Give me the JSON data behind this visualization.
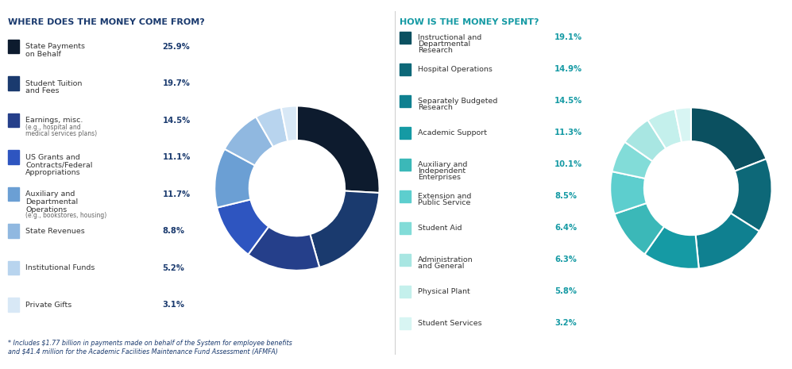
{
  "left_title": "WHERE DOES THE MONEY COME FROM?",
  "right_title": "HOW IS THE MONEY SPENT?",
  "footnote": "* Includes $1.77 billion in payments made on behalf of the System for employee benefits\nand $41.4 million for the Academic Facilities Maintenance Fund Assessment (AFMFA)",
  "left_entries": [
    {
      "label": "State Payments\non Behalf",
      "pct": "25.9%",
      "color": "#0d1b2e"
    },
    {
      "label": "Student Tuition\nand Fees",
      "pct": "19.7%",
      "color": "#1a3a6e"
    },
    {
      "label": "Earnings, misc.",
      "pct": "14.5%",
      "color": "#253f8a",
      "sub": "(e.g., hospital and\nmedical services plans)"
    },
    {
      "label": "US Grants and\nContracts/Federal\nAppropriations",
      "pct": "11.1%",
      "color": "#2e55c0"
    },
    {
      "label": "Auxiliary and\nDepartmental\nOperations",
      "pct": "11.7%",
      "color": "#6b9fd4",
      "sub": "(e.g., bookstores, housing)"
    },
    {
      "label": "State Revenues",
      "pct": "8.8%",
      "color": "#90b8e0"
    },
    {
      "label": "Institutional Funds",
      "pct": "5.2%",
      "color": "#b8d4ee"
    },
    {
      "label": "Private Gifts",
      "pct": "3.1%",
      "color": "#d8e8f6"
    }
  ],
  "left_values": [
    25.9,
    19.7,
    14.5,
    11.1,
    11.7,
    8.8,
    5.2,
    3.1
  ],
  "left_colors": [
    "#0d1b2e",
    "#1a3a6e",
    "#253f8a",
    "#2e55c0",
    "#6b9fd4",
    "#90b8e0",
    "#b8d4ee",
    "#d8e8f6"
  ],
  "right_entries": [
    {
      "label": "Instructional and\nDepartmental\nResearch",
      "pct": "19.1%",
      "color": "#0b5060"
    },
    {
      "label": "Hospital Operations",
      "pct": "14.9%",
      "color": "#0d6878"
    },
    {
      "label": "Separately Budgeted\nResearch",
      "pct": "14.5%",
      "color": "#0f8090"
    },
    {
      "label": "Academic Support",
      "pct": "11.3%",
      "color": "#159aa4"
    },
    {
      "label": "Auxiliary and\nIndependent\nEnterprises",
      "pct": "10.1%",
      "color": "#3bb8b8"
    },
    {
      "label": "Extension and\nPublic Service",
      "pct": "8.5%",
      "color": "#5dcece"
    },
    {
      "label": "Student Aid",
      "pct": "6.4%",
      "color": "#82dcd8"
    },
    {
      "label": "Administration\nand General",
      "pct": "6.3%",
      "color": "#a8e6e2"
    },
    {
      "label": "Physical Plant",
      "pct": "5.8%",
      "color": "#c4f0ec"
    },
    {
      "label": "Student Services",
      "pct": "3.2%",
      "color": "#d8f5f3"
    }
  ],
  "right_values": [
    19.1,
    14.9,
    14.5,
    11.3,
    10.1,
    8.5,
    6.4,
    6.3,
    5.8,
    3.2
  ],
  "right_colors": [
    "#0b5060",
    "#0d6878",
    "#0f8090",
    "#159aa4",
    "#3bb8b8",
    "#5dcece",
    "#82dcd8",
    "#a8e6e2",
    "#c4f0ec",
    "#d8f5f3"
  ],
  "title_color": "#1a3a6e",
  "right_title_color": "#159aa4",
  "label_color_left": "#333333",
  "label_color_right": "#333333",
  "pct_color_left": "#1a3a6e",
  "pct_color_right": "#159aa4",
  "sub_color": "#666666",
  "bg_color": "#ffffff",
  "footnote_color": "#1a3a6e"
}
